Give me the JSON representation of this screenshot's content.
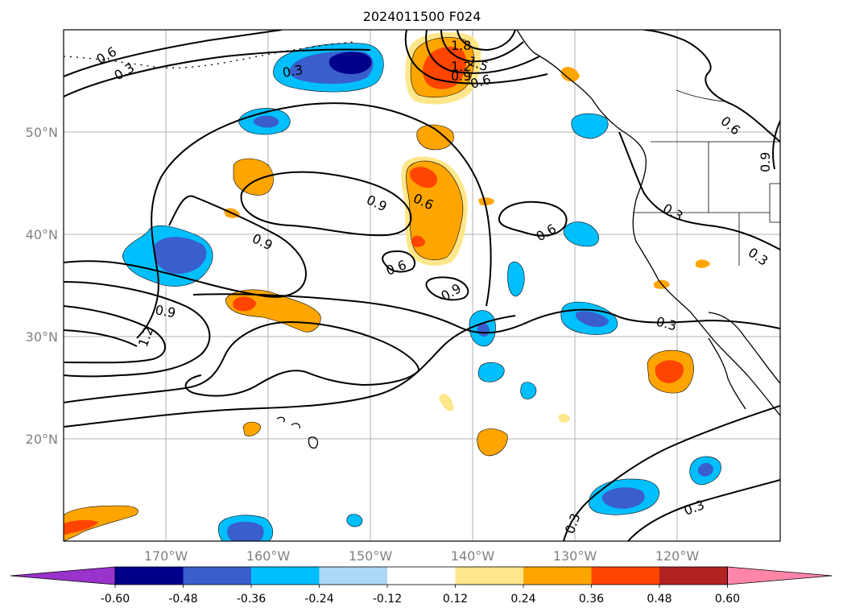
{
  "title": "2024011500 F024",
  "latitude_labels": [
    "50°N",
    "40°N",
    "30°N",
    "20°N"
  ],
  "longitude_labels": [
    "170°W",
    "160°W",
    "150°W",
    "140°W",
    "130°W",
    "120°W"
  ],
  "colorbar": {
    "tick_labels": [
      "-0.60",
      "-0.48",
      "-0.36",
      "-0.24",
      "-0.12",
      "0.12",
      "0.24",
      "0.36",
      "0.48",
      "0.60"
    ],
    "colors": [
      "#9933cc",
      "#00008b",
      "#3a5fcd",
      "#00bfff",
      "#add8f5",
      "#ffffff",
      "#ffe68a",
      "#ffa500",
      "#ff4500",
      "#b22222",
      "#ff85a9"
    ]
  },
  "contour_labels": [
    "0.6",
    "0.3",
    "0.3",
    "1.8",
    "1.5",
    "1.2",
    "0.9",
    "0.6",
    "0.6",
    "0.9",
    "0.9",
    "0.9",
    "0.6",
    "0.6",
    "0.9",
    "0.6",
    "0.3",
    "0.9",
    "1.2",
    "0.3",
    "0.3",
    "0.3",
    "0.3",
    "0.3"
  ]
}
